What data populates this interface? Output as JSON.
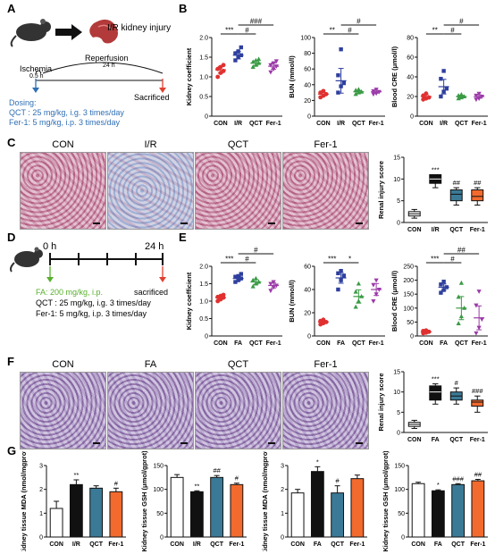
{
  "panels": {
    "A": "A",
    "B": "B",
    "C": "C",
    "D": "D",
    "E": "E",
    "F": "F",
    "G": "G"
  },
  "schematic_A": {
    "injury_label": "I/R kidney injury",
    "ischemia": "Ischemia",
    "ischemia_time": "0.5 h",
    "reperfusion": "Reperfusion",
    "reperfusion_time": "24 h",
    "sacrificed": "Sacrificed",
    "dosing_title": "Dosing:",
    "dosing_qct": "QCT : 25 mg/kg, i.g. 3 times/day",
    "dosing_fer": "Fer-1: 5 mg/kg, i.p. 3 times/day"
  },
  "schematic_D": {
    "t0": "0 h",
    "t24": "24 h",
    "fa": "FA: 200 mg/kg, i.p.",
    "sacrificed": "sacrificed",
    "qct": "QCT : 25 mg/kg, i.g. 3 times/day",
    "fer": "Fer-1: 5 mg/kg, i.p. 3 times/day"
  },
  "histology_C": [
    "CON",
    "I/R",
    "QCT",
    "Fer-1"
  ],
  "histology_F": [
    "CON",
    "FA",
    "QCT",
    "Fer-1"
  ],
  "colors": {
    "con": "#e03030",
    "ir": "#2e3f9e",
    "qct": "#3a9b45",
    "fer": "#9b3aa8",
    "dosing": "#2f6fb5",
    "fa_text": "#58b02c",
    "sac_arrow": "#e04030",
    "g_white": "#ffffff",
    "g_black": "#111111",
    "g_teal": "#3b7a96",
    "g_orange": "#f26a2e"
  },
  "chart_data": [
    {
      "id": "B1",
      "type": "scatter",
      "categories": [
        "CON",
        "I/R",
        "QCT",
        "Fer-1"
      ],
      "ylabel": "Kidney coefficient",
      "ylim": [
        0,
        2
      ],
      "yticks": [
        "0",
        "0.5",
        "1.0",
        "1.5",
        "2.0"
      ],
      "means": [
        1.18,
        1.55,
        1.35,
        1.27
      ],
      "points": [
        [
          1.0,
          1.1,
          1.15,
          1.2,
          1.25,
          1.3
        ],
        [
          1.42,
          1.5,
          1.55,
          1.6,
          1.65,
          1.75
        ],
        [
          1.25,
          1.3,
          1.35,
          1.38,
          1.42,
          1.45
        ],
        [
          1.12,
          1.2,
          1.27,
          1.3,
          1.35,
          1.4
        ]
      ],
      "sig": [
        {
          "text": "***",
          "from": 0,
          "to": 1,
          "level": 1
        },
        {
          "text": "#",
          "from": 1,
          "to": 2,
          "level": 1
        },
        {
          "text": "###",
          "from": 1,
          "to": 3,
          "level": 2
        }
      ]
    },
    {
      "id": "B2",
      "type": "scatter",
      "categories": [
        "CON",
        "I/R",
        "QCT",
        "Fer-1"
      ],
      "ylabel": "BUN (mmol/l)",
      "ylim": [
        0,
        100
      ],
      "yticks": [
        "0",
        "20",
        "40",
        "60",
        "80",
        "100"
      ],
      "means": [
        28,
        45,
        31,
        31
      ],
      "points": [
        [
          24,
          26,
          28,
          30,
          32
        ],
        [
          30,
          38,
          42,
          52,
          85
        ],
        [
          28,
          30,
          31,
          33,
          34
        ],
        [
          28,
          29,
          31,
          32,
          34
        ]
      ],
      "sig": [
        {
          "text": "**",
          "from": 0,
          "to": 1,
          "level": 1
        },
        {
          "text": "#",
          "from": 1,
          "to": 2,
          "level": 1
        },
        {
          "text": "#",
          "from": 1,
          "to": 3,
          "level": 2
        }
      ]
    },
    {
      "id": "B3",
      "type": "scatter",
      "categories": [
        "CON",
        "I/R",
        "QCT",
        "Fer-1"
      ],
      "ylabel": "Blood CRE (μmol/l)",
      "ylim": [
        0,
        80
      ],
      "yticks": [
        "0",
        "20",
        "40",
        "60",
        "80"
      ],
      "means": [
        20,
        30,
        20,
        20
      ],
      "points": [
        [
          17,
          18,
          19,
          21,
          23
        ],
        [
          20,
          25,
          28,
          38,
          46
        ],
        [
          18,
          19,
          20,
          21,
          22
        ],
        [
          17,
          18,
          20,
          21,
          23
        ]
      ],
      "sig": [
        {
          "text": "**",
          "from": 0,
          "to": 1,
          "level": 1
        },
        {
          "text": "#",
          "from": 1,
          "to": 2,
          "level": 1
        },
        {
          "text": "#",
          "from": 1,
          "to": 3,
          "level": 2
        }
      ]
    },
    {
      "id": "C",
      "type": "box",
      "categories": [
        "CON",
        "I/R",
        "QCT",
        "Fer-1"
      ],
      "ylabel": "Renal injury score",
      "ylim": [
        0,
        15
      ],
      "yticks": [
        "0",
        "5",
        "10",
        "15"
      ],
      "boxes": [
        [
          1,
          1.5,
          2,
          2.5,
          3
        ],
        [
          8,
          9,
          10,
          11,
          11
        ],
        [
          4,
          5,
          6.5,
          7.5,
          8
        ],
        [
          4,
          5,
          6,
          7.5,
          8
        ]
      ],
      "fills": [
        "#ffffff",
        "#111111",
        "#3b7a96",
        "#f26a2e"
      ],
      "labels": [
        "",
        "***",
        "##",
        "##"
      ]
    },
    {
      "id": "E1",
      "type": "scatter",
      "categories": [
        "CON",
        "FA",
        "QCT",
        "Fer-1"
      ],
      "ylabel": "Kidney coefficient",
      "ylim": [
        0,
        2
      ],
      "yticks": [
        "0",
        "0.5",
        "1.0",
        "1.5",
        "2.0"
      ],
      "means": [
        1.1,
        1.65,
        1.55,
        1.45
      ],
      "points": [
        [
          1.0,
          1.05,
          1.1,
          1.12,
          1.15,
          1.18
        ],
        [
          1.55,
          1.6,
          1.65,
          1.7,
          1.72,
          1.78
        ],
        [
          1.42,
          1.5,
          1.55,
          1.6,
          1.65
        ],
        [
          1.3,
          1.4,
          1.45,
          1.5,
          1.55
        ]
      ],
      "sig": [
        {
          "text": "***",
          "from": 0,
          "to": 1,
          "level": 1
        },
        {
          "text": "#",
          "from": 1,
          "to": 2,
          "level": 1
        },
        {
          "text": "#",
          "from": 1,
          "to": 3,
          "level": 2
        }
      ]
    },
    {
      "id": "E2",
      "type": "scatter",
      "categories": [
        "CON",
        "FA",
        "QCT",
        "Fer-1"
      ],
      "ylabel": "BUN (mmol/l)",
      "ylim": [
        0,
        60
      ],
      "yticks": [
        "0",
        "20",
        "40",
        "60"
      ],
      "means": [
        12,
        50,
        34,
        40
      ],
      "points": [
        [
          10,
          11,
          12,
          13,
          14
        ],
        [
          40,
          48,
          52,
          54,
          56
        ],
        [
          25,
          30,
          34,
          38,
          45
        ],
        [
          30,
          36,
          40,
          44,
          48
        ]
      ],
      "sig": [
        {
          "text": "***",
          "from": 0,
          "to": 1,
          "level": 1
        },
        {
          "text": "*",
          "from": 1,
          "to": 2,
          "level": 1
        }
      ]
    },
    {
      "id": "E3",
      "type": "scatter",
      "categories": [
        "CON",
        "FA",
        "QCT",
        "Fer-1"
      ],
      "ylabel": "Blood CRE (μmol/l)",
      "ylim": [
        0,
        250
      ],
      "yticks": [
        "0",
        "50",
        "100",
        "150",
        "200",
        "250"
      ],
      "means": [
        15,
        175,
        100,
        65
      ],
      "points": [
        [
          10,
          12,
          15,
          18,
          20
        ],
        [
          155,
          165,
          175,
          185,
          195
        ],
        [
          45,
          70,
          100,
          140,
          190
        ],
        [
          10,
          30,
          60,
          110,
          160
        ]
      ],
      "sig": [
        {
          "text": "***",
          "from": 0,
          "to": 1,
          "level": 1
        },
        {
          "text": "#",
          "from": 1,
          "to": 2,
          "level": 1
        },
        {
          "text": "##",
          "from": 1,
          "to": 3,
          "level": 2
        }
      ]
    },
    {
      "id": "F",
      "type": "box",
      "categories": [
        "CON",
        "FA",
        "QCT",
        "Fer-1"
      ],
      "ylabel": "Renal injury score",
      "ylim": [
        0,
        15
      ],
      "yticks": [
        "0",
        "5",
        "10",
        "15"
      ],
      "boxes": [
        [
          1,
          1.5,
          2,
          2.5,
          3
        ],
        [
          7,
          8,
          10,
          11.5,
          12
        ],
        [
          7,
          8,
          9,
          10,
          11
        ],
        [
          5,
          6.5,
          7.5,
          8,
          9
        ]
      ],
      "fills": [
        "#ffffff",
        "#111111",
        "#3b7a96",
        "#f26a2e"
      ],
      "labels": [
        "",
        "***",
        "#",
        "###"
      ]
    },
    {
      "id": "G1",
      "type": "bar",
      "categories": [
        "CON",
        "I/R",
        "QCT",
        "Fer-1"
      ],
      "ylabel": "Kidney tissue MDA (nmol/mgprot)",
      "ylim": [
        0,
        3
      ],
      "yticks": [
        "0",
        "1",
        "2",
        "3"
      ],
      "values": [
        1.2,
        2.2,
        2.05,
        1.9
      ],
      "errors": [
        0.3,
        0.2,
        0.1,
        0.15
      ],
      "labels": [
        "",
        "**",
        "",
        "#"
      ],
      "fills": [
        "#ffffff",
        "#111111",
        "#3b7a96",
        "#f26a2e"
      ]
    },
    {
      "id": "G2",
      "type": "bar",
      "categories": [
        "CON",
        "I/R",
        "QCT",
        "Fer-1"
      ],
      "ylabel": "Kidney tissue GSH (μmol/gprot)",
      "ylim": [
        0,
        150
      ],
      "yticks": [
        "0",
        "50",
        "100",
        "150"
      ],
      "values": [
        125,
        95,
        125,
        110
      ],
      "errors": [
        6,
        2,
        4,
        3
      ],
      "labels": [
        "",
        "**",
        "##",
        "#"
      ],
      "fills": [
        "#ffffff",
        "#111111",
        "#3b7a96",
        "#f26a2e"
      ]
    },
    {
      "id": "G3",
      "type": "bar",
      "categories": [
        "CON",
        "FA",
        "QCT",
        "Fer-1"
      ],
      "ylabel": "Kidney tissue MDA (nmol/mgprot)",
      "ylim": [
        0,
        3
      ],
      "yticks": [
        "0",
        "1",
        "2",
        "3"
      ],
      "values": [
        1.85,
        2.75,
        1.85,
        2.45
      ],
      "errors": [
        0.15,
        0.2,
        0.3,
        0.15
      ],
      "labels": [
        "",
        "*",
        "#",
        ""
      ],
      "fills": [
        "#ffffff",
        "#111111",
        "#3b7a96",
        "#f26a2e"
      ]
    },
    {
      "id": "G4",
      "type": "bar",
      "categories": [
        "CON",
        "FA",
        "QCT",
        "Fer-1"
      ],
      "ylabel": "Kidney tissue GSH (μmol/gprot)",
      "ylim": [
        0,
        150
      ],
      "yticks": [
        "0",
        "50",
        "100",
        "150"
      ],
      "values": [
        112,
        97,
        110,
        118
      ],
      "errors": [
        3,
        2,
        2,
        3
      ],
      "labels": [
        "",
        "*",
        "###",
        "##"
      ],
      "fills": [
        "#ffffff",
        "#111111",
        "#3b7a96",
        "#f26a2e"
      ]
    }
  ]
}
